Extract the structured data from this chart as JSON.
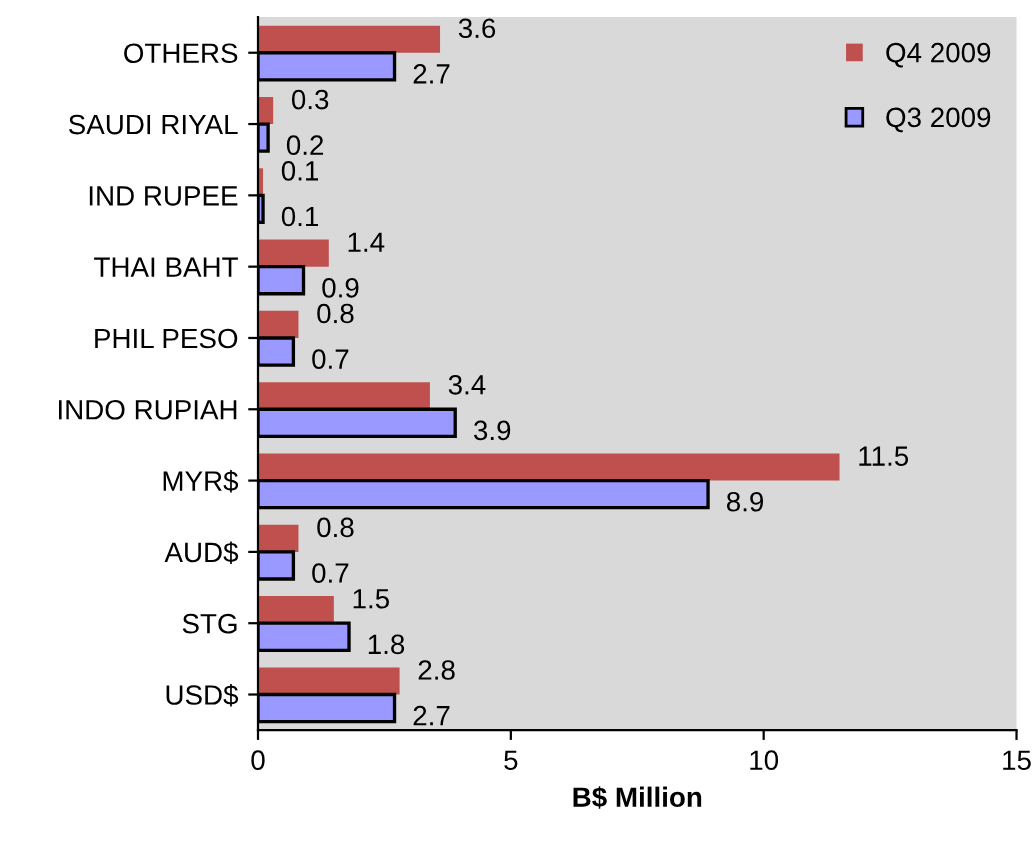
{
  "chart_data": {
    "type": "bar",
    "orientation": "horizontal",
    "xlabel": "B$ Million",
    "categories": [
      "OTHERS",
      "SAUDI RIYAL",
      "IND RUPEE",
      "THAI BAHT",
      "PHIL PESO",
      "INDO RUPIAH",
      "MYR$",
      "AUD$",
      "STG",
      "USD$"
    ],
    "series": [
      {
        "name": "Q4 2009",
        "color": "#c0504d",
        "values": [
          3.6,
          0.3,
          0.1,
          1.4,
          0.8,
          3.4,
          11.5,
          0.8,
          1.5,
          2.8
        ]
      },
      {
        "name": "Q3 2009",
        "color": "#9999ff",
        "values": [
          2.7,
          0.2,
          0.1,
          0.9,
          0.7,
          3.9,
          8.9,
          0.7,
          1.8,
          2.7
        ]
      }
    ],
    "xlim": [
      0,
      15
    ],
    "xticks": [
      0,
      5,
      10,
      15
    ],
    "data_labels": true,
    "legend": "top right",
    "grid": false
  }
}
